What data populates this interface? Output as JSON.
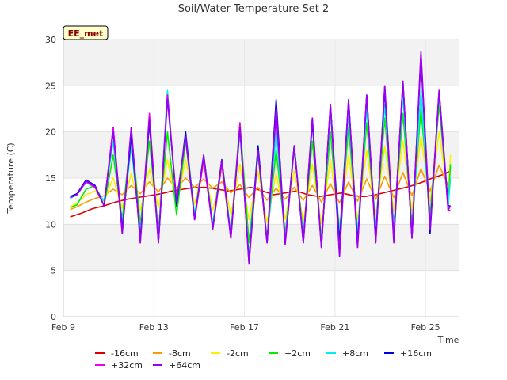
{
  "chart_data": {
    "type": "line",
    "title": "Soil/Water Temperature Set 2",
    "xlabel": "Time",
    "ylabel": "Temperature (C)",
    "badge": "EE_met",
    "xlim": [
      9,
      26.5
    ],
    "ylim": [
      0,
      30
    ],
    "x_ticks": [
      {
        "value": 9,
        "label": "Feb 9"
      },
      {
        "value": 13,
        "label": "Feb 13"
      },
      {
        "value": 17,
        "label": "Feb 17"
      },
      {
        "value": 21,
        "label": "Feb 21"
      },
      {
        "value": 25,
        "label": "Feb 25"
      }
    ],
    "y_ticks": [
      0,
      5,
      10,
      15,
      20,
      25,
      30
    ],
    "grid": true,
    "legend_position": "bottom",
    "x_unit": "day of February",
    "series": [
      {
        "name": "-16cm",
        "color": "#dd0000",
        "x": [
          9.3,
          9.8,
          10.3,
          10.8,
          11.3,
          11.8,
          12.3,
          12.8,
          13.3,
          13.8,
          14.3,
          14.8,
          15.3,
          15.8,
          16.3,
          16.8,
          17.3,
          17.8,
          18.3,
          18.8,
          19.3,
          19.8,
          20.3,
          20.8,
          21.3,
          21.8,
          22.3,
          22.8,
          23.3,
          23.8,
          24.3,
          24.8,
          25.3,
          25.8,
          26.1
        ],
        "y": [
          10.8,
          11.2,
          11.7,
          12.0,
          12.4,
          12.7,
          12.9,
          13.1,
          13.3,
          13.6,
          13.8,
          14.0,
          14.0,
          13.8,
          13.6,
          13.8,
          14.0,
          13.6,
          13.2,
          13.4,
          13.6,
          13.2,
          13.0,
          13.2,
          13.4,
          13.1,
          13.0,
          13.2,
          13.5,
          13.8,
          14.1,
          14.5,
          15.0,
          15.4,
          15.8
        ]
      },
      {
        "name": "-8cm",
        "color": "#ff9900",
        "x": [
          9.3,
          9.6,
          10.0,
          10.4,
          10.8,
          11.2,
          11.6,
          12.0,
          12.4,
          12.8,
          13.2,
          13.6,
          14.0,
          14.4,
          14.8,
          15.2,
          15.6,
          16.0,
          16.4,
          16.8,
          17.2,
          17.6,
          18.0,
          18.4,
          18.8,
          19.2,
          19.6,
          20.0,
          20.4,
          20.8,
          21.2,
          21.6,
          22.0,
          22.4,
          22.8,
          23.2,
          23.6,
          24.0,
          24.4,
          24.8,
          25.2,
          25.6,
          26.0,
          26.1
        ],
        "y": [
          11.6,
          11.9,
          12.4,
          12.8,
          13.1,
          13.8,
          13.2,
          14.2,
          13.3,
          14.6,
          13.5,
          15.0,
          13.9,
          15.0,
          14.0,
          14.9,
          13.9,
          14.6,
          13.4,
          14.3,
          12.9,
          14.0,
          12.6,
          13.9,
          12.7,
          14.0,
          12.6,
          14.2,
          12.4,
          14.4,
          12.3,
          14.6,
          12.5,
          14.9,
          12.7,
          15.2,
          12.9,
          15.6,
          13.1,
          16.0,
          13.6,
          16.4,
          14.2,
          16.2
        ]
      },
      {
        "name": "-2cm",
        "color": "#ffee00",
        "x": [
          9.3,
          9.6,
          10.0,
          10.4,
          10.8,
          11.2,
          11.6,
          12.0,
          12.4,
          12.8,
          13.2,
          13.6,
          14.0,
          14.4,
          14.8,
          15.2,
          15.6,
          16.0,
          16.4,
          16.8,
          17.2,
          17.6,
          18.0,
          18.4,
          18.8,
          19.2,
          19.6,
          20.0,
          20.4,
          20.8,
          21.2,
          21.6,
          22.0,
          22.4,
          22.8,
          23.2,
          23.6,
          24.0,
          24.4,
          24.8,
          25.2,
          25.6,
          26.0,
          26.1
        ],
        "y": [
          11.9,
          12.3,
          13.2,
          13.6,
          12.5,
          15.0,
          11.7,
          15.5,
          11.5,
          16.0,
          11.8,
          17.0,
          12.0,
          17.0,
          12.2,
          16.5,
          11.5,
          16.0,
          11.0,
          16.5,
          10.5,
          15.8,
          10.2,
          15.5,
          10.5,
          15.8,
          10.4,
          16.5,
          10.1,
          17.0,
          10.0,
          17.5,
          10.5,
          18.0,
          11.0,
          18.5,
          11.5,
          19.0,
          11.5,
          19.5,
          12.5,
          20.0,
          13.0,
          17.5
        ]
      },
      {
        "name": "+2cm",
        "color": "#00ee00",
        "x": [
          9.3,
          9.6,
          10.0,
          10.4,
          10.8,
          11.2,
          11.6,
          12.0,
          12.4,
          12.8,
          13.2,
          13.6,
          14.0,
          14.4,
          14.8,
          15.2,
          15.6,
          16.0,
          16.4,
          16.8,
          17.2,
          17.6,
          18.0,
          18.4,
          18.8,
          19.2,
          19.6,
          20.0,
          20.4,
          20.8,
          21.2,
          21.6,
          22.0,
          22.4,
          22.8,
          23.2,
          23.6,
          24.0,
          24.4,
          24.8,
          25.2,
          25.6,
          26.0,
          26.1
        ],
        "y": [
          11.8,
          12.1,
          13.8,
          14.2,
          12.0,
          17.5,
          10.5,
          20.0,
          10.0,
          19.0,
          9.5,
          20.0,
          11.0,
          19.0,
          11.0,
          17.0,
          10.0,
          17.0,
          9.0,
          21.0,
          8.0,
          17.5,
          8.5,
          18.0,
          9.0,
          18.0,
          9.0,
          19.0,
          8.5,
          20.0,
          8.5,
          20.5,
          9.0,
          21.0,
          9.5,
          21.5,
          10.0,
          22.0,
          10.0,
          22.5,
          11.0,
          23.0,
          12.0,
          16.5
        ]
      },
      {
        "name": "+8cm",
        "color": "#00eeee",
        "x": [
          9.3,
          9.6,
          10.0,
          10.4,
          10.8,
          11.2,
          11.6,
          12.0,
          12.4,
          12.8,
          13.2,
          13.6,
          14.0,
          14.4,
          14.8,
          15.2,
          15.6,
          16.0,
          16.4,
          16.8,
          17.2,
          17.6,
          18.0,
          18.4,
          18.8,
          19.2,
          19.6,
          20.0,
          20.4,
          20.8,
          21.2,
          21.6,
          22.0,
          22.4,
          22.8,
          23.2,
          23.6,
          24.0,
          24.4,
          24.8,
          25.2,
          25.6,
          26.0,
          26.1
        ],
        "y": [
          12.8,
          13.2,
          14.5,
          14.0,
          12.5,
          19.0,
          10.0,
          18.5,
          9.0,
          21.0,
          8.5,
          24.5,
          12.0,
          20.0,
          11.0,
          17.5,
          10.0,
          17.0,
          9.0,
          20.0,
          6.5,
          18.5,
          8.0,
          20.0,
          8.5,
          18.5,
          8.5,
          21.0,
          8.0,
          22.0,
          9.0,
          22.0,
          9.0,
          22.5,
          9.5,
          23.0,
          9.5,
          24.0,
          9.0,
          24.5,
          10.0,
          24.0,
          12.0,
          15.0
        ]
      },
      {
        "name": "+16cm",
        "color": "#0000dd",
        "x": [
          9.3,
          9.6,
          10.0,
          10.4,
          10.8,
          11.2,
          11.6,
          12.0,
          12.4,
          12.8,
          13.2,
          13.6,
          14.0,
          14.4,
          14.8,
          15.2,
          15.6,
          16.0,
          16.4,
          16.8,
          17.2,
          17.6,
          18.0,
          18.4,
          18.8,
          19.2,
          19.6,
          20.0,
          20.4,
          20.8,
          21.2,
          21.6,
          22.0,
          22.4,
          22.8,
          23.2,
          23.6,
          24.0,
          24.4,
          24.8,
          25.2,
          25.6,
          26.0,
          26.1
        ],
        "y": [
          13.0,
          13.3,
          14.8,
          14.2,
          12.0,
          20.5,
          9.5,
          19.5,
          8.5,
          21.0,
          8.0,
          24.0,
          12.0,
          20.0,
          10.5,
          17.5,
          9.5,
          17.0,
          8.5,
          20.5,
          6.0,
          18.5,
          8.0,
          23.5,
          8.0,
          18.5,
          8.0,
          21.0,
          7.5,
          23.0,
          8.0,
          23.5,
          8.0,
          24.0,
          8.5,
          24.5,
          8.5,
          25.5,
          8.5,
          28.0,
          9.0,
          24.5,
          12.0,
          12.0
        ]
      },
      {
        "name": "+32cm",
        "color": "#ee00ee",
        "x": [
          9.3,
          9.6,
          10.0,
          10.4,
          10.8,
          11.2,
          11.6,
          12.0,
          12.4,
          12.8,
          13.2,
          13.6,
          14.0,
          14.4,
          14.8,
          15.2,
          15.6,
          16.0,
          16.4,
          16.8,
          17.2,
          17.6,
          18.0,
          18.4,
          18.8,
          19.2,
          19.6,
          20.0,
          20.4,
          20.8,
          21.2,
          21.6,
          22.0,
          22.4,
          22.8,
          23.2,
          23.6,
          24.0,
          24.4,
          24.8,
          25.2,
          25.6,
          26.0,
          26.1
        ],
        "y": [
          12.9,
          13.2,
          14.6,
          14.0,
          12.0,
          20.5,
          9.0,
          20.5,
          8.0,
          22.0,
          8.0,
          24.0,
          12.5,
          19.5,
          10.5,
          17.0,
          9.5,
          16.5,
          8.5,
          21.0,
          5.8,
          18.0,
          8.0,
          22.5,
          8.0,
          18.5,
          8.0,
          21.5,
          7.5,
          23.0,
          7.0,
          23.5,
          7.5,
          24.0,
          8.0,
          25.0,
          8.5,
          25.5,
          8.5,
          28.5,
          9.5,
          24.5,
          11.5,
          11.5
        ]
      },
      {
        "name": "+64cm",
        "color": "#9900ee",
        "x": [
          9.3,
          9.6,
          10.0,
          10.4,
          10.8,
          11.2,
          11.6,
          12.0,
          12.4,
          12.8,
          13.2,
          13.6,
          14.0,
          14.4,
          14.8,
          15.2,
          15.6,
          16.0,
          16.4,
          16.8,
          17.2,
          17.6,
          18.0,
          18.4,
          18.8,
          19.2,
          19.6,
          20.0,
          20.4,
          20.8,
          21.2,
          21.6,
          22.0,
          22.4,
          22.8,
          23.2,
          23.6,
          24.0,
          24.4,
          24.8,
          25.2,
          25.6,
          26.0,
          26.1
        ],
        "y": [
          12.9,
          13.2,
          14.7,
          14.1,
          12.0,
          20.0,
          9.0,
          20.5,
          8.0,
          21.5,
          8.0,
          23.5,
          12.5,
          19.5,
          10.5,
          17.5,
          9.5,
          17.0,
          8.5,
          20.5,
          5.7,
          18.0,
          8.0,
          22.0,
          7.8,
          18.5,
          8.0,
          21.5,
          7.5,
          23.0,
          6.5,
          23.5,
          7.5,
          24.0,
          8.0,
          25.0,
          8.0,
          25.5,
          8.5,
          28.7,
          9.5,
          24.5,
          11.5,
          12.0
        ]
      }
    ]
  }
}
